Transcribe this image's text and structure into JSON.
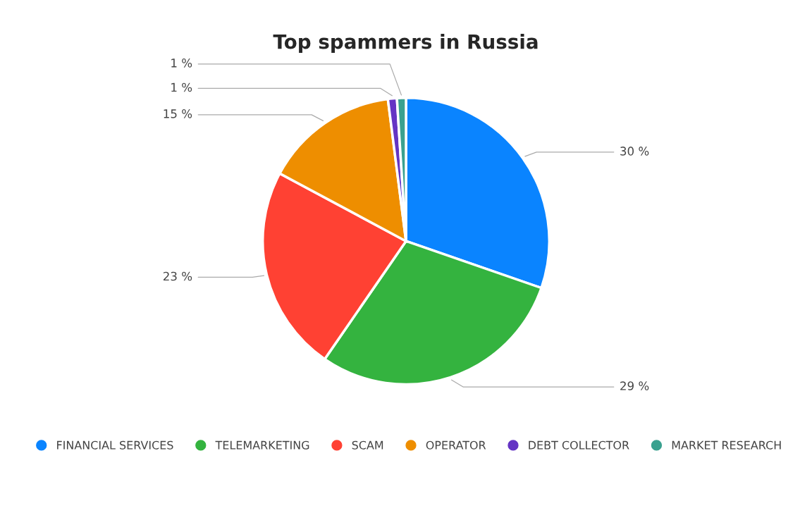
{
  "chart_data": {
    "type": "pie",
    "title": "Top spammers in Russia",
    "categories": [
      "FINANCIAL SERVICES",
      "TELEMARKETING",
      "SCAM",
      "OPERATOR",
      "DEBT COLLECTOR",
      "MARKET RESEARCH"
    ],
    "values": [
      30,
      29,
      23,
      15,
      1,
      1
    ],
    "colors": [
      "#0a84ff",
      "#34b33f",
      "#ff4133",
      "#ee8e00",
      "#6434c4",
      "#3aa18f"
    ],
    "value_labels": [
      "30 %",
      "29 %",
      "23 %",
      "15 %",
      "1 %",
      "1 %"
    ],
    "legend": "bottom"
  }
}
